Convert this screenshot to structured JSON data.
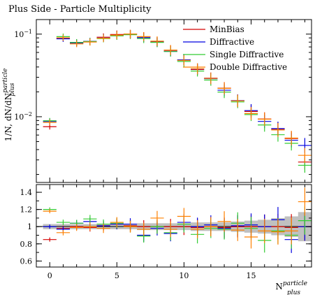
{
  "chart_data": [
    {
      "type": "scatter",
      "panel": "main",
      "title": "Plus Side - Particle Multiplicity",
      "ylabel": {
        "main": "1/N, dN/dN",
        "sup": "particle",
        "sub": "plus"
      },
      "yscale": "log",
      "xlim": [
        -1,
        19.5
      ],
      "ylim": [
        0.0016,
        0.15
      ],
      "yticks": [
        {
          "value": 0.1,
          "base": "10",
          "exp": "−1"
        },
        {
          "value": 0.01,
          "base": "10",
          "exp": "−2"
        }
      ],
      "legend_position": "top-right",
      "series": [
        {
          "name": "MinBias",
          "color": "#d40000",
          "x": [
            0,
            1,
            2,
            3,
            4,
            5,
            6,
            7,
            8,
            9,
            10,
            11,
            12,
            13,
            14,
            15,
            16,
            17,
            18,
            19
          ],
          "y": [
            0.0075,
            0.088,
            0.078,
            0.08,
            0.091,
            0.098,
            0.099,
            0.092,
            0.08,
            0.063,
            0.048,
            0.037,
            0.029,
            0.022,
            0.0155,
            0.0115,
            0.0093,
            0.007,
            0.0054,
            0.0028
          ]
        },
        {
          "name": "Diffractive",
          "color": "#0000e0",
          "x": [
            0,
            1,
            2,
            3,
            4,
            5,
            6,
            7,
            8,
            9,
            10,
            11,
            12,
            13,
            14,
            15,
            16,
            17,
            18,
            19
          ],
          "y": [
            0.0088,
            0.088,
            0.078,
            0.082,
            0.09,
            0.097,
            0.1,
            0.091,
            0.08,
            0.062,
            0.049,
            0.038,
            0.029,
            0.021,
            0.0157,
            0.0119,
            0.0088,
            0.0072,
            0.0052,
            0.0045
          ]
        },
        {
          "name": "Single Diffractive",
          "color": "#33cc33",
          "x": [
            0,
            1,
            2,
            3,
            4,
            5,
            6,
            7,
            8,
            9,
            10,
            11,
            12,
            13,
            14,
            15,
            16,
            17,
            18,
            19
          ],
          "y": [
            0.009,
            0.094,
            0.08,
            0.082,
            0.089,
            0.096,
            0.099,
            0.089,
            0.08,
            0.062,
            0.047,
            0.036,
            0.028,
            0.02,
            0.0152,
            0.0107,
            0.008,
            0.0061,
            0.0048,
            0.0026
          ]
        },
        {
          "name": "Double Diffractive",
          "color": "#ff8000",
          "x": [
            0,
            1,
            2,
            3,
            4,
            5,
            6,
            7,
            8,
            9,
            10,
            11,
            12,
            13,
            14,
            15,
            16,
            17,
            18,
            19
          ],
          "y": [
            0.0085,
            0.09,
            0.076,
            0.08,
            0.089,
            0.097,
            0.1,
            0.093,
            0.082,
            0.064,
            0.048,
            0.038,
            0.029,
            0.022,
            0.0155,
            0.0109,
            0.0093,
            0.0069,
            0.0055,
            0.0034
          ]
        }
      ]
    },
    {
      "type": "scatter",
      "panel": "ratio",
      "xlabel": {
        "main": "N",
        "sup": "particle",
        "sub": "plus"
      },
      "xlim": [
        -1,
        19.5
      ],
      "ylim": [
        0.53,
        1.49
      ],
      "xticks": [
        "0",
        "5",
        "10",
        "15"
      ],
      "yticks": [
        "0.6",
        "0.8",
        "1",
        "1.2",
        "1.4"
      ],
      "band": [
        0.03,
        0.03,
        0.03,
        0.03,
        0.03,
        0.03,
        0.03,
        0.04,
        0.04,
        0.04,
        0.04,
        0.05,
        0.05,
        0.05,
        0.06,
        0.07,
        0.08,
        0.1,
        0.12,
        0.17
      ],
      "series": [
        {
          "name": "MinBias",
          "color": "#d40000",
          "y": [
            0.85,
            0.98,
            1.0,
            0.99,
            1.01,
            1.03,
            1.01,
            1.0,
            1.0,
            1.0,
            1.0,
            0.99,
            1.0,
            0.99,
            1.0,
            1.0,
            1.0,
            1.0,
            0.99,
            1.0
          ]
        },
        {
          "name": "Diffractive",
          "color": "#0000e0",
          "y": [
            1.0,
            0.97,
            1.04,
            1.06,
            1.01,
            1.03,
            1.03,
            0.9,
            0.98,
            0.92,
            1.05,
            1.0,
            1.02,
            0.98,
            1.01,
            1.02,
            1.0,
            1.08,
            0.85,
            1.0
          ]
        },
        {
          "name": "Single Diffractive",
          "color": "#33cc33",
          "y": [
            1.2,
            1.05,
            1.04,
            1.09,
            1.03,
            1.04,
            1.0,
            0.89,
            1.0,
            0.93,
            1.03,
            0.91,
            0.98,
            0.97,
            1.04,
            0.98,
            0.84,
            0.95,
            0.9,
            1.07
          ]
        },
        {
          "name": "Double Diffractive",
          "color": "#ff8000",
          "y": [
            1.18,
            0.93,
            0.99,
            1.0,
            0.98,
            1.05,
            1.0,
            0.97,
            1.1,
            0.97,
            1.12,
            0.97,
            1.0,
            1.06,
            0.96,
            0.88,
            0.95,
            0.94,
            0.95,
            1.29
          ]
        }
      ]
    }
  ]
}
